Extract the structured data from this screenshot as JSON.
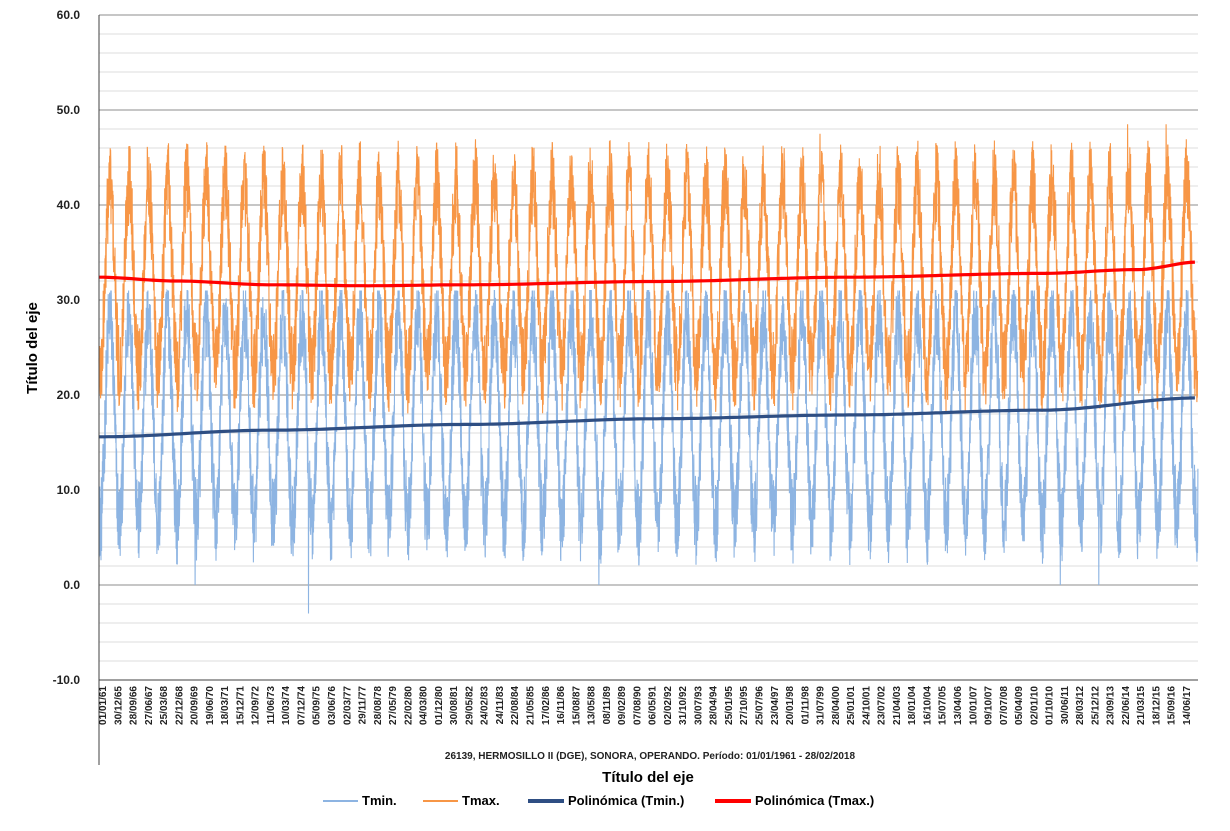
{
  "chart_data": {
    "type": "line",
    "title": "",
    "subtitle": "26139, HERMOSILLO II (DGE), SONORA, OPERANDO. Período: 01/01/1961 - 28/02/2018",
    "xlabel": "Título del eje",
    "ylabel": "Título del eje",
    "ylim": [
      -10,
      60
    ],
    "y_ticks": [
      "60.0",
      "50.0",
      "40.0",
      "30.0",
      "20.0",
      "10.0",
      "0.0",
      "-10.0"
    ],
    "y_tick_values": [
      60,
      50,
      40,
      30,
      20,
      10,
      0,
      -10
    ],
    "y_negative_tick_color": "#e00000",
    "x_range": [
      "1961-01-01",
      "2018-02-28"
    ],
    "x_tick_labels": [
      "01/01/61",
      "30/12/65",
      "28/09/66",
      "27/06/67",
      "25/03/68",
      "22/12/68",
      "20/09/69",
      "19/06/70",
      "18/03/71",
      "15/12/71",
      "12/09/72",
      "11/06/73",
      "10/03/74",
      "07/12/74",
      "05/09/75",
      "03/06/76",
      "02/03/77",
      "29/11/77",
      "28/08/78",
      "27/05/79",
      "22/02/80",
      "04/03/80",
      "01/12/80",
      "30/08/81",
      "29/05/82",
      "24/02/83",
      "24/11/83",
      "22/08/84",
      "21/05/85",
      "17/02/86",
      "16/11/86",
      "15/08/87",
      "13/05/88",
      "08/11/89",
      "09/02/89",
      "07/08/90",
      "06/05/91",
      "02/02/92",
      "31/10/92",
      "30/07/93",
      "28/04/94",
      "25/01/95",
      "27/10/95",
      "25/07/96",
      "23/04/97",
      "20/01/98",
      "01/11/98",
      "31/07/99",
      "28/04/00",
      "25/01/01",
      "24/10/01",
      "23/07/02",
      "21/04/03",
      "18/01/04",
      "16/10/04",
      "15/07/05",
      "13/04/06",
      "10/01/07",
      "09/10/07",
      "07/07/08",
      "05/04/09",
      "02/01/10",
      "01/10/10",
      "30/06/11",
      "28/03/12",
      "25/12/12",
      "23/09/13",
      "22/06/14",
      "21/03/15",
      "18/12/15",
      "15/09/16",
      "14/06/17"
    ],
    "grid": true,
    "legend_position": "bottom",
    "series": [
      {
        "name": "Tmin.",
        "kind": "seasonal daily minimum",
        "color": "#8db4e2",
        "seasonal_mean": 17.5,
        "seasonal_amplitude": 11,
        "observed_min": -3.0,
        "observed_max": 31.0
      },
      {
        "name": "Tmax.",
        "kind": "seasonal daily maximum",
        "color": "#f79646",
        "seasonal_mean": 32.5,
        "seasonal_amplitude": 10,
        "observed_min": 10.0,
        "observed_max": 48.5
      },
      {
        "name": "Polinómica (Tmin.)",
        "kind": "trend",
        "color": "#2e4e83",
        "x": [
          1961,
          1970,
          1980,
          1990,
          2000,
          2010,
          2018.2
        ],
        "y": [
          15.6,
          16.3,
          16.9,
          17.5,
          17.9,
          18.4,
          19.7
        ]
      },
      {
        "name": "Polinómica (Tmax.)",
        "kind": "trend",
        "color": "#ff0000",
        "x": [
          1961,
          1965,
          1970,
          1975,
          1980,
          1990,
          2000,
          2010,
          2015,
          2018.2
        ],
        "y": [
          32.4,
          32.0,
          31.6,
          31.5,
          31.6,
          31.95,
          32.4,
          32.8,
          33.2,
          34.0
        ]
      }
    ]
  }
}
